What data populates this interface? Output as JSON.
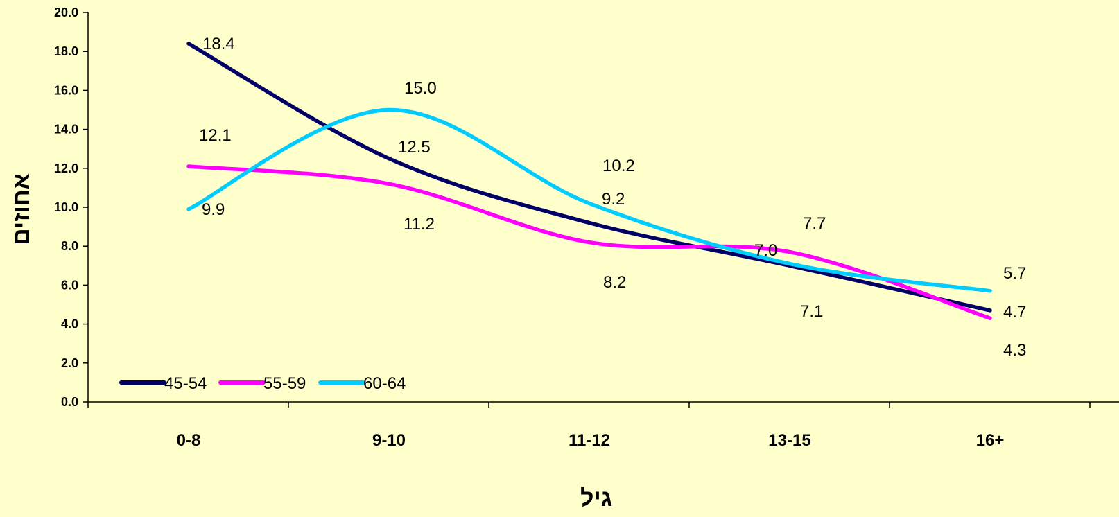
{
  "chart_data": {
    "type": "line",
    "categories": [
      "0-8",
      "9-10",
      "11-12",
      "13-15",
      "16+"
    ],
    "xlabel": "גיל",
    "ylabel": "אחוזים",
    "ylim": [
      0,
      20
    ],
    "yticks": [
      "0.0",
      "2.0",
      "4.0",
      "6.0",
      "8.0",
      "10.0",
      "12.0",
      "14.0",
      "16.0",
      "18.0",
      "20.0"
    ],
    "grid": false,
    "legend_position": "bottom-left",
    "series": [
      {
        "name": "45-54",
        "values": [
          18.4,
          12.5,
          9.2,
          7.0,
          4.7
        ],
        "color": "#000066",
        "labels": [
          "18.4",
          "12.5",
          "9.2",
          "7.0",
          "4.7"
        ]
      },
      {
        "name": "55-59",
        "values": [
          12.1,
          11.2,
          8.2,
          7.7,
          4.3
        ],
        "color": "#FF00FF",
        "labels": [
          "12.1",
          "11.2",
          "8.2",
          "7.7",
          "4.3"
        ]
      },
      {
        "name": "60-64",
        "values": [
          9.9,
          15.0,
          10.2,
          7.1,
          5.7
        ],
        "color": "#00CCFF",
        "labels": [
          "9.9",
          "15.0",
          "10.2",
          "7.1",
          "5.7"
        ]
      }
    ]
  }
}
